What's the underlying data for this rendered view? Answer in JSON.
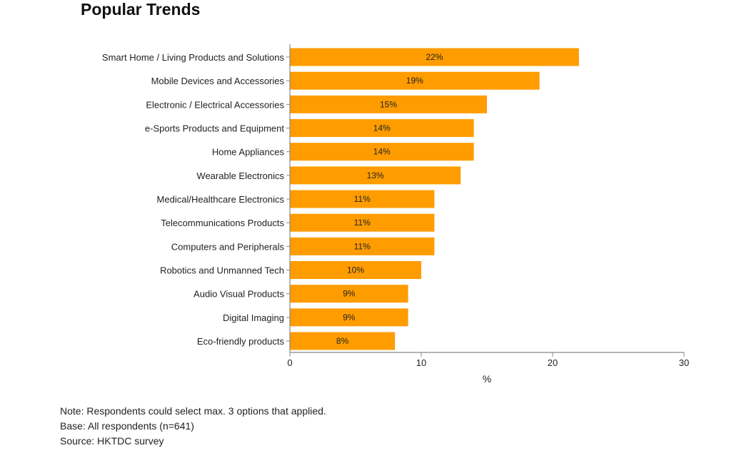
{
  "title": "Popular Trends",
  "notes": {
    "note": "Note: Respondents could select max. 3 options that applied.",
    "base": "Base: All respondents (n=641)",
    "source": "Source: HKTDC survey"
  },
  "colors": {
    "bar": "#ff9c00",
    "axis": "#888888",
    "text": "#222222"
  },
  "chart_data": {
    "type": "bar",
    "orientation": "horizontal",
    "title": "Popular Trends",
    "xlabel": "%",
    "ylabel": "",
    "xlim": [
      0,
      30
    ],
    "xticks": [
      0,
      10,
      20,
      30
    ],
    "grid": false,
    "categories": [
      "Smart Home / Living Products and Solutions",
      "Mobile Devices and Accessories",
      "Electronic / Electrical Accessories",
      "e-Sports Products and Equipment",
      "Home Appliances",
      "Wearable Electronics",
      "Medical/Healthcare Electronics",
      "Telecommunications Products",
      "Computers and Peripherals",
      "Robotics and Unmanned Tech",
      "Audio Visual Products",
      "Digital Imaging",
      "Eco-friendly products"
    ],
    "values": [
      22,
      19,
      15,
      14,
      14,
      13,
      11,
      11,
      11,
      10,
      9,
      9,
      8
    ],
    "data_labels": [
      "22%",
      "19%",
      "15%",
      "14%",
      "14%",
      "13%",
      "11%",
      "11%",
      "11%",
      "10%",
      "9%",
      "9%",
      "8%"
    ]
  }
}
